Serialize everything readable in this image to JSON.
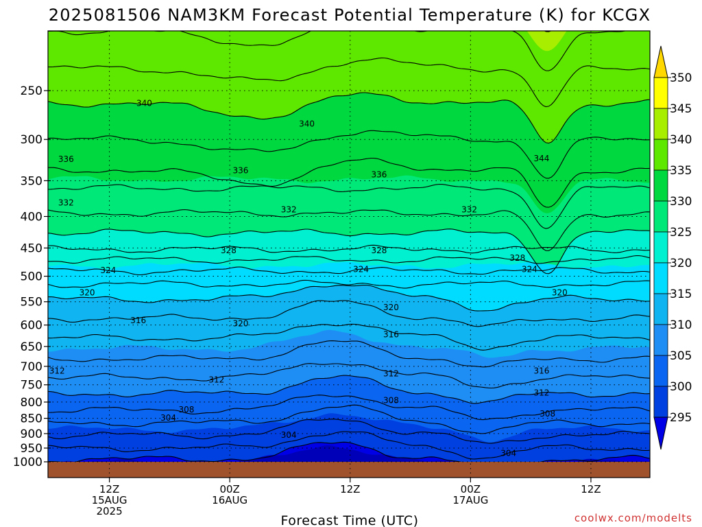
{
  "chart_data": {
    "type": "heatmap",
    "title": "2025081506 NAM3KM Forecast Potential Temperature (K) for KCGX",
    "xlabel": "Forecast Time (UTC)",
    "credit": "coolwx.com/modelts",
    "y_axis": {
      "scale": "pressure (log)",
      "ticks": [
        250,
        300,
        350,
        400,
        450,
        500,
        550,
        600,
        650,
        700,
        750,
        800,
        850,
        900,
        950,
        1000
      ],
      "range": [
        200,
        1000
      ]
    },
    "x_axis": {
      "ticks": [
        {
          "line1": "12Z",
          "line2": "15AUG",
          "line3": "2025"
        },
        {
          "line1": "00Z",
          "line2": "16AUG",
          "line3": ""
        },
        {
          "line1": "12Z",
          "line2": "",
          "line3": ""
        },
        {
          "line1": "00Z",
          "line2": "17AUG",
          "line3": ""
        },
        {
          "line1": "12Z",
          "line2": "",
          "line3": ""
        }
      ]
    },
    "colorbar": {
      "levels": [
        295,
        300,
        305,
        310,
        315,
        320,
        325,
        330,
        335,
        340,
        345,
        350
      ],
      "colors": [
        "#0000e6",
        "#0040e0",
        "#0a66f0",
        "#1e8ef5",
        "#10b4f0",
        "#00dcff",
        "#00f0d0",
        "#00e878",
        "#00d840",
        "#5ee800",
        "#a8ee00",
        "#ffff00"
      ]
    },
    "contour_labels": [
      {
        "text": "340",
        "x": 0.16,
        "p": 262
      },
      {
        "text": "340",
        "x": 0.43,
        "p": 283
      },
      {
        "text": "344",
        "x": 0.82,
        "p": 322
      },
      {
        "text": "336",
        "x": 0.03,
        "p": 323
      },
      {
        "text": "336",
        "x": 0.32,
        "p": 337
      },
      {
        "text": "336",
        "x": 0.55,
        "p": 342
      },
      {
        "text": "332",
        "x": 0.03,
        "p": 380
      },
      {
        "text": "332",
        "x": 0.4,
        "p": 390
      },
      {
        "text": "332",
        "x": 0.7,
        "p": 390
      },
      {
        "text": "328",
        "x": 0.3,
        "p": 454
      },
      {
        "text": "328",
        "x": 0.55,
        "p": 454
      },
      {
        "text": "328",
        "x": 0.78,
        "p": 467
      },
      {
        "text": "324",
        "x": 0.1,
        "p": 489
      },
      {
        "text": "324",
        "x": 0.52,
        "p": 487
      },
      {
        "text": "324",
        "x": 0.8,
        "p": 487
      },
      {
        "text": "320",
        "x": 0.065,
        "p": 532
      },
      {
        "text": "320",
        "x": 0.85,
        "p": 532
      },
      {
        "text": "320",
        "x": 0.57,
        "p": 562
      },
      {
        "text": "316",
        "x": 0.15,
        "p": 590
      },
      {
        "text": "320",
        "x": 0.32,
        "p": 597
      },
      {
        "text": "316",
        "x": 0.57,
        "p": 622
      },
      {
        "text": "312",
        "x": 0.015,
        "p": 712
      },
      {
        "text": "312",
        "x": 0.28,
        "p": 736
      },
      {
        "text": "312",
        "x": 0.57,
        "p": 719
      },
      {
        "text": "316",
        "x": 0.82,
        "p": 712
      },
      {
        "text": "312",
        "x": 0.82,
        "p": 773
      },
      {
        "text": "308",
        "x": 0.57,
        "p": 795
      },
      {
        "text": "308",
        "x": 0.23,
        "p": 823
      },
      {
        "text": "308",
        "x": 0.83,
        "p": 836
      },
      {
        "text": "304",
        "x": 0.2,
        "p": 849
      },
      {
        "text": "304",
        "x": 0.4,
        "p": 905
      },
      {
        "text": "304",
        "x": 0.765,
        "p": 968
      }
    ]
  }
}
